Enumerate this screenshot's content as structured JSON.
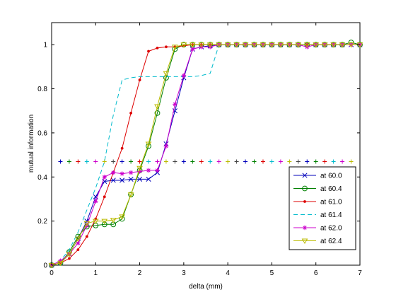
{
  "chart_data": {
    "type": "line",
    "xlabel": "delta (mm)",
    "ylabel": "mutual information",
    "xlim": [
      0,
      7
    ],
    "ylim": [
      0,
      1.1
    ],
    "xticks": [
      "0",
      "1",
      "2",
      "3",
      "4",
      "5",
      "6",
      "7"
    ],
    "yticks": [
      "0",
      "0.2",
      "0.4",
      "0.6",
      "0.8",
      "1"
    ],
    "grid": false,
    "legend_position": "lower-right",
    "series": [
      {
        "name": "at 60.0",
        "color": "#0000bb",
        "marker": "x",
        "dashed": false,
        "x": [
          0,
          0.2,
          0.4,
          0.6,
          0.8,
          1.0,
          1.2,
          1.4,
          1.6,
          1.8,
          2.0,
          2.2,
          2.4,
          2.6,
          2.8,
          3.0,
          3.2,
          3.4,
          3.6,
          3.8,
          4.0,
          4.2,
          4.4,
          4.6,
          4.8,
          5.0,
          5.2,
          5.4,
          5.6,
          5.8,
          6.0,
          6.2,
          6.4,
          6.6,
          6.8,
          7.0
        ],
        "y": [
          0,
          0.01,
          0.05,
          0.12,
          0.2,
          0.31,
          0.38,
          0.385,
          0.385,
          0.39,
          0.39,
          0.39,
          0.42,
          0.55,
          0.7,
          0.85,
          0.98,
          0.99,
          0.995,
          1.0,
          1.0,
          1.0,
          1.0,
          1.0,
          1.0,
          1.0,
          1.0,
          1.0,
          1.0,
          1.0,
          1.0,
          1.0,
          1.0,
          1.0,
          1.0,
          1.0
        ]
      },
      {
        "name": "at 60.4",
        "color": "#008000",
        "marker": "o",
        "dashed": false,
        "x": [
          0,
          0.2,
          0.4,
          0.6,
          0.8,
          1.0,
          1.2,
          1.4,
          1.6,
          1.8,
          2.0,
          2.2,
          2.4,
          2.6,
          2.8,
          3.0,
          3.2,
          3.4,
          3.6,
          3.8,
          4.0,
          4.2,
          4.4,
          4.6,
          4.8,
          5.0,
          5.2,
          5.4,
          5.6,
          5.8,
          6.0,
          6.2,
          6.4,
          6.6,
          6.8,
          7.0
        ],
        "y": [
          0,
          0.01,
          0.06,
          0.13,
          0.175,
          0.18,
          0.185,
          0.185,
          0.21,
          0.32,
          0.43,
          0.54,
          0.69,
          0.85,
          0.98,
          1.0,
          1.0,
          1.0,
          1.0,
          1.0,
          1.0,
          1.0,
          1.0,
          1.0,
          1.0,
          1.0,
          1.0,
          1.0,
          1.0,
          1.0,
          1.0,
          1.0,
          1.0,
          1.0,
          1.01,
          1.0
        ]
      },
      {
        "name": "at 61.0",
        "color": "#dd0000",
        "marker": "dot",
        "dashed": false,
        "x": [
          0,
          0.2,
          0.4,
          0.6,
          0.8,
          1.0,
          1.2,
          1.4,
          1.6,
          1.8,
          2.0,
          2.2,
          2.4,
          2.6,
          2.8,
          3.0,
          3.2,
          3.4,
          3.6,
          3.8,
          4.0,
          4.2,
          4.4,
          4.6,
          4.8,
          5.0,
          5.2,
          5.4,
          5.6,
          5.8,
          6.0,
          6.2,
          6.4,
          6.6,
          6.8,
          7.0
        ],
        "y": [
          0,
          0.01,
          0.03,
          0.07,
          0.13,
          0.21,
          0.31,
          0.42,
          0.53,
          0.69,
          0.84,
          0.97,
          0.985,
          0.99,
          0.99,
          0.995,
          1.0,
          1.0,
          1.0,
          1.0,
          1.0,
          1.0,
          1.0,
          1.0,
          1.0,
          1.0,
          1.0,
          1.0,
          1.0,
          1.0,
          1.0,
          1.0,
          1.0,
          1.0,
          1.0,
          1.0
        ]
      },
      {
        "name": "at 61.4",
        "color": "#00bbcc",
        "marker": "none",
        "dashed": true,
        "x": [
          0,
          0.2,
          0.4,
          0.6,
          0.8,
          1.0,
          1.2,
          1.4,
          1.6,
          1.8,
          2.0,
          2.2,
          2.4,
          2.6,
          2.8,
          3.0,
          3.2,
          3.4,
          3.6,
          3.8,
          4.0,
          4.2,
          4.4,
          4.6,
          4.8,
          5.0,
          5.2,
          5.4,
          5.6,
          5.8,
          6.0,
          6.2,
          6.4,
          6.6,
          6.8,
          7.0
        ],
        "y": [
          0,
          0.02,
          0.07,
          0.15,
          0.25,
          0.35,
          0.47,
          0.68,
          0.84,
          0.85,
          0.855,
          0.855,
          0.855,
          0.855,
          0.855,
          0.855,
          0.855,
          0.86,
          0.87,
          1.0,
          1.0,
          1.0,
          1.0,
          1.0,
          1.0,
          1.0,
          1.0,
          1.0,
          1.0,
          1.0,
          1.0,
          1.0,
          1.0,
          1.0,
          1.0,
          1.0
        ]
      },
      {
        "name": "at 62.0",
        "color": "#cc00cc",
        "marker": "asterisk",
        "dashed": false,
        "x": [
          0,
          0.2,
          0.4,
          0.6,
          0.8,
          1.0,
          1.2,
          1.4,
          1.6,
          1.8,
          2.0,
          2.2,
          2.4,
          2.6,
          2.8,
          3.0,
          3.2,
          3.4,
          3.6,
          3.8,
          4.0,
          4.2,
          4.4,
          4.6,
          4.8,
          5.0,
          5.2,
          5.4,
          5.6,
          5.8,
          6.0,
          6.2,
          6.4,
          6.6,
          6.8,
          7.0
        ],
        "y": [
          0,
          0.02,
          0.05,
          0.1,
          0.18,
          0.29,
          0.4,
          0.42,
          0.415,
          0.42,
          0.425,
          0.43,
          0.43,
          0.54,
          0.73,
          0.86,
          0.98,
          0.99,
          0.99,
          1.0,
          1.0,
          1.0,
          1.0,
          1.0,
          1.0,
          1.0,
          1.0,
          1.0,
          1.0,
          0.99,
          1.0,
          1.0,
          1.0,
          1.0,
          1.0,
          1.0
        ]
      },
      {
        "name": "at 62.4",
        "color": "#bbbb00",
        "marker": "triangle",
        "dashed": false,
        "x": [
          0,
          0.2,
          0.4,
          0.6,
          0.8,
          1.0,
          1.2,
          1.4,
          1.6,
          1.8,
          2.0,
          2.2,
          2.4,
          2.6,
          2.8,
          3.0,
          3.2,
          3.4,
          3.6,
          3.8,
          4.0,
          4.2,
          4.4,
          4.6,
          4.8,
          5.0,
          5.2,
          5.4,
          5.6,
          5.8,
          6.0,
          6.2,
          6.4,
          6.6,
          6.8,
          7.0
        ],
        "y": [
          0,
          0.01,
          0.05,
          0.12,
          0.19,
          0.2,
          0.2,
          0.205,
          0.22,
          0.32,
          0.44,
          0.55,
          0.72,
          0.87,
          0.99,
          1.0,
          1.0,
          1.0,
          1.0,
          1.0,
          1.0,
          1.0,
          1.0,
          1.0,
          1.0,
          1.0,
          1.0,
          1.0,
          1.0,
          1.0,
          1.0,
          1.0,
          1.0,
          1.0,
          1.0,
          1.0
        ]
      }
    ],
    "reference_markers": {
      "y": 0.47,
      "x": [
        0.2,
        0.4,
        0.6,
        0.8,
        1.0,
        1.2,
        1.4,
        1.6,
        1.8,
        2.0,
        2.2,
        2.4,
        2.6,
        2.8,
        3.0,
        3.2,
        3.4,
        3.6,
        3.8,
        4.0,
        4.2,
        4.4,
        4.6,
        4.8,
        5.0,
        5.2,
        5.4,
        5.6,
        5.8,
        6.0,
        6.2,
        6.4,
        6.6,
        6.8
      ],
      "colors": [
        "#0000bb",
        "#008000",
        "#dd0000",
        "#00bbcc",
        "#cc00cc",
        "#bbbb00",
        "#444444"
      ]
    }
  }
}
